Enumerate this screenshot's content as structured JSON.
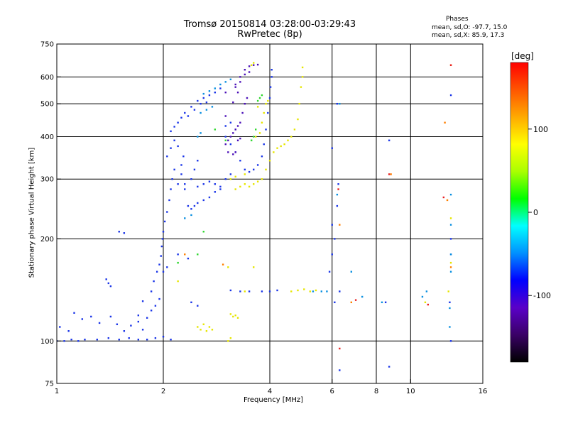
{
  "chart_data": {
    "type": "scatter",
    "title": "Tromsø 20150814 03:28:00-03:29:43",
    "subtitle": "RwPretec (8p)",
    "xlabel": "Frequency [MHz]",
    "ylabel": "Stationary phase Virtual Height [km]",
    "x_scale": "log",
    "y_scale": "log",
    "xlim": [
      1,
      16
    ],
    "ylim": [
      75,
      750
    ],
    "x_ticks": [
      1,
      2,
      4,
      6,
      8,
      10,
      16
    ],
    "x_tick_labels": [
      "1",
      "2",
      "4",
      "6",
      "8",
      "10",
      "16"
    ],
    "y_ticks": [
      75,
      100,
      200,
      300,
      400,
      500,
      600,
      750
    ],
    "y_tick_labels": [
      "75",
      "100",
      "200",
      "300",
      "400",
      "500",
      "600",
      "750"
    ],
    "x_gridlines": [
      2,
      4,
      6,
      8,
      10
    ],
    "y_gridlines": [
      100,
      200,
      300,
      400,
      500,
      600
    ],
    "grid": true,
    "phase_info": {
      "heading": "Phases",
      "o_mode": "mean, sd,O: -97.7, 15.0",
      "x_mode": "mean, sd,X: 85.9, 17.3"
    },
    "colorbar": {
      "label": "[deg]",
      "range": [
        -180,
        180
      ],
      "ticks": [
        100,
        0,
        -100
      ],
      "tick_labels": [
        "100",
        "0",
        "-100"
      ],
      "colors": [
        "#000000",
        "#3a0066",
        "#5a00c8",
        "#0000ff",
        "#0090ff",
        "#00ffff",
        "#00ff00",
        "#aaff00",
        "#ffff00",
        "#ffaa00",
        "#ff5500",
        "#ff0000"
      ]
    },
    "series": [
      {
        "color": "#1a35e8",
        "points": [
          [
            1.0,
            100
          ],
          [
            1.05,
            100
          ],
          [
            1.1,
            101
          ],
          [
            1.15,
            100
          ],
          [
            1.2,
            101
          ],
          [
            1.3,
            101
          ],
          [
            1.4,
            102
          ],
          [
            1.5,
            101
          ],
          [
            1.6,
            102
          ],
          [
            1.7,
            101
          ],
          [
            1.8,
            101
          ],
          [
            1.9,
            102
          ],
          [
            2.0,
            103
          ],
          [
            2.1,
            101
          ],
          [
            1.02,
            110
          ],
          [
            1.08,
            107
          ],
          [
            1.12,
            121
          ],
          [
            1.18,
            116
          ],
          [
            1.25,
            118
          ],
          [
            1.32,
            113
          ],
          [
            1.42,
            118
          ],
          [
            1.48,
            112
          ],
          [
            1.55,
            107
          ],
          [
            1.62,
            111
          ],
          [
            1.7,
            114
          ],
          [
            1.75,
            108
          ],
          [
            1.8,
            117
          ],
          [
            1.85,
            123
          ],
          [
            1.9,
            127
          ],
          [
            1.95,
            133
          ],
          [
            1.7,
            119
          ],
          [
            1.75,
            131
          ],
          [
            1.85,
            140
          ],
          [
            1.88,
            150
          ],
          [
            1.92,
            160
          ],
          [
            1.95,
            168
          ],
          [
            1.97,
            178
          ],
          [
            1.98,
            190
          ],
          [
            1.99,
            200
          ],
          [
            2.0,
            210
          ],
          [
            2.02,
            225
          ],
          [
            2.05,
            240
          ],
          [
            2.08,
            260
          ],
          [
            2.1,
            280
          ],
          [
            2.12,
            300
          ],
          [
            2.15,
            320
          ],
          [
            2.05,
            350
          ],
          [
            2.1,
            370
          ],
          [
            2.15,
            390
          ],
          [
            2.2,
            375
          ],
          [
            2.25,
            310
          ],
          [
            2.3,
            280
          ],
          [
            2.2,
            290
          ],
          [
            2.25,
            330
          ],
          [
            2.28,
            350
          ],
          [
            2.3,
            290
          ],
          [
            2.35,
            250
          ],
          [
            2.4,
            245
          ],
          [
            2.45,
            250
          ],
          [
            2.5,
            255
          ],
          [
            2.6,
            260
          ],
          [
            2.7,
            265
          ],
          [
            2.8,
            275
          ],
          [
            2.9,
            285
          ],
          [
            3.0,
            300
          ],
          [
            3.1,
            310
          ],
          [
            2.5,
            285
          ],
          [
            2.6,
            290
          ],
          [
            2.7,
            295
          ],
          [
            2.8,
            290
          ],
          [
            2.9,
            280
          ],
          [
            2.4,
            300
          ],
          [
            2.45,
            320
          ],
          [
            2.5,
            340
          ],
          [
            1.4,
            148
          ],
          [
            1.42,
            145
          ],
          [
            1.38,
            152
          ],
          [
            1.5,
            210
          ],
          [
            1.55,
            208
          ],
          [
            2.3,
            470
          ],
          [
            2.4,
            490
          ],
          [
            2.5,
            510
          ],
          [
            2.6,
            520
          ],
          [
            2.7,
            530
          ],
          [
            2.8,
            540
          ],
          [
            2.9,
            555
          ],
          [
            2.35,
            460
          ],
          [
            2.45,
            480
          ],
          [
            2.55,
            500
          ],
          [
            2.65,
            505
          ],
          [
            2.2,
            440
          ],
          [
            2.25,
            455
          ],
          [
            2.1,
            415
          ],
          [
            2.15,
            428
          ],
          [
            3.0,
            430
          ],
          [
            3.1,
            440
          ],
          [
            3.2,
            420
          ],
          [
            3.0,
            400
          ],
          [
            3.1,
            380
          ],
          [
            3.2,
            360
          ],
          [
            3.3,
            340
          ],
          [
            3.4,
            320
          ],
          [
            3.5,
            315
          ],
          [
            3.6,
            320
          ],
          [
            3.7,
            330
          ],
          [
            3.8,
            350
          ],
          [
            3.85,
            380
          ],
          [
            3.9,
            420
          ],
          [
            3.95,
            470
          ],
          [
            4.0,
            520
          ],
          [
            4.02,
            560
          ],
          [
            4.05,
            600
          ],
          [
            4.05,
            630
          ],
          [
            3.5,
            140
          ],
          [
            3.8,
            140
          ],
          [
            4.0,
            140
          ],
          [
            4.2,
            141
          ],
          [
            3.3,
            140
          ],
          [
            3.1,
            141
          ],
          [
            2.4,
            130
          ],
          [
            2.5,
            127
          ],
          [
            2.0,
            160
          ],
          [
            2.05,
            165
          ],
          [
            2.2,
            180
          ],
          [
            2.35,
            175
          ],
          [
            6.3,
            82
          ],
          [
            6.25,
            290
          ],
          [
            6.3,
            140
          ],
          [
            6.1,
            130
          ],
          [
            6.2,
            250
          ],
          [
            6.1,
            200
          ],
          [
            6.0,
            220
          ],
          [
            6.0,
            180
          ],
          [
            5.9,
            160
          ],
          [
            6.0,
            370
          ],
          [
            6.2,
            500
          ],
          [
            8.5,
            130
          ],
          [
            8.7,
            390
          ],
          [
            8.7,
            84
          ],
          [
            13.0,
            530
          ],
          [
            13.0,
            100
          ],
          [
            12.9,
            130
          ],
          [
            13.0,
            180
          ],
          [
            13.0,
            200
          ]
        ]
      },
      {
        "color": "#0a90e0",
        "points": [
          [
            2.3,
            230
          ],
          [
            2.4,
            235
          ],
          [
            2.5,
            400
          ],
          [
            2.55,
            410
          ],
          [
            2.6,
            535
          ],
          [
            2.7,
            545
          ],
          [
            2.8,
            555
          ],
          [
            2.9,
            570
          ],
          [
            3.0,
            580
          ],
          [
            3.1,
            590
          ],
          [
            2.55,
            470
          ],
          [
            2.65,
            480
          ],
          [
            2.75,
            490
          ],
          [
            5.3,
            140
          ],
          [
            5.6,
            140
          ],
          [
            5.8,
            140
          ],
          [
            6.3,
            500
          ],
          [
            7.3,
            135
          ],
          [
            8.3,
            130
          ],
          [
            10.8,
            135
          ],
          [
            11.1,
            140
          ],
          [
            13.0,
            270
          ],
          [
            13.0,
            220
          ],
          [
            13.0,
            180
          ],
          [
            13.0,
            160
          ],
          [
            12.9,
            125
          ],
          [
            12.9,
            110
          ],
          [
            6.8,
            160
          ],
          [
            6.2,
            270
          ]
        ]
      },
      {
        "color": "#4b10b8",
        "points": [
          [
            3.0,
            380
          ],
          [
            3.05,
            390
          ],
          [
            3.1,
            400
          ],
          [
            3.15,
            410
          ],
          [
            3.2,
            420
          ],
          [
            3.25,
            430
          ],
          [
            3.3,
            440
          ],
          [
            3.35,
            470
          ],
          [
            3.4,
            500
          ],
          [
            3.45,
            520
          ],
          [
            3.25,
            390
          ],
          [
            3.3,
            395
          ],
          [
            3.2,
            360
          ],
          [
            3.15,
            355
          ],
          [
            3.05,
            360
          ],
          [
            3.0,
            460
          ],
          [
            3.2,
            570
          ],
          [
            3.3,
            600
          ],
          [
            3.4,
            630
          ],
          [
            3.5,
            645
          ],
          [
            3.6,
            650
          ],
          [
            3.7,
            652
          ],
          [
            3.3,
            580
          ],
          [
            3.2,
            560
          ],
          [
            3.4,
            610
          ],
          [
            3.5,
            620
          ],
          [
            3.15,
            505
          ],
          [
            3.25,
            540
          ],
          [
            3.0,
            540
          ]
        ]
      },
      {
        "color": "#e6e600",
        "points": [
          [
            3.2,
            280
          ],
          [
            3.3,
            285
          ],
          [
            3.4,
            290
          ],
          [
            3.5,
            285
          ],
          [
            3.6,
            290
          ],
          [
            3.7,
            295
          ],
          [
            3.8,
            300
          ],
          [
            3.9,
            320
          ],
          [
            4.0,
            340
          ],
          [
            4.1,
            360
          ],
          [
            4.2,
            370
          ],
          [
            4.3,
            375
          ],
          [
            4.4,
            380
          ],
          [
            4.5,
            390
          ],
          [
            4.6,
            400
          ],
          [
            4.7,
            420
          ],
          [
            4.8,
            450
          ],
          [
            4.85,
            500
          ],
          [
            4.9,
            560
          ],
          [
            4.95,
            600
          ],
          [
            4.95,
            640
          ],
          [
            3.1,
            300
          ],
          [
            3.2,
            305
          ],
          [
            3.4,
            310
          ],
          [
            2.5,
            110
          ],
          [
            2.55,
            108
          ],
          [
            2.6,
            112
          ],
          [
            2.65,
            107
          ],
          [
            2.7,
            110
          ],
          [
            2.75,
            108
          ],
          [
            3.1,
            120
          ],
          [
            3.15,
            118
          ],
          [
            3.2,
            119
          ],
          [
            3.25,
            117
          ],
          [
            3.1,
            102
          ],
          [
            3.05,
            100
          ],
          [
            4.6,
            140
          ],
          [
            4.8,
            141
          ],
          [
            5.0,
            142
          ],
          [
            5.2,
            140
          ],
          [
            5.4,
            141
          ],
          [
            3.8,
            440
          ],
          [
            3.85,
            470
          ],
          [
            3.9,
            500
          ],
          [
            3.95,
            510
          ],
          [
            3.7,
            490
          ],
          [
            3.65,
            400
          ],
          [
            3.75,
            410
          ],
          [
            3.55,
            650
          ],
          [
            3.6,
            660
          ],
          [
            13.0,
            230
          ],
          [
            13.0,
            170
          ],
          [
            12.8,
            140
          ],
          [
            11.0,
            130
          ],
          [
            3.4,
            140
          ],
          [
            3.6,
            165
          ],
          [
            3.05,
            165
          ],
          [
            2.2,
            150
          ]
        ]
      },
      {
        "color": "#30d830",
        "points": [
          [
            3.6,
            400
          ],
          [
            3.65,
            420
          ],
          [
            3.55,
            390
          ],
          [
            3.7,
            510
          ],
          [
            3.75,
            520
          ],
          [
            3.8,
            530
          ],
          [
            2.5,
            180
          ],
          [
            2.6,
            210
          ],
          [
            3.0,
            390
          ],
          [
            2.8,
            420
          ],
          [
            2.2,
            170
          ]
        ]
      },
      {
        "color": "#ff7f00",
        "points": [
          [
            13.0,
            650
          ],
          [
            12.5,
            440
          ],
          [
            12.7,
            260
          ],
          [
            13.0,
            165
          ],
          [
            2.3,
            180
          ],
          [
            6.3,
            220
          ],
          [
            6.8,
            130
          ],
          [
            8.8,
            310
          ],
          [
            2.95,
            168
          ]
        ]
      },
      {
        "color": "#e82020",
        "points": [
          [
            6.25,
            280
          ],
          [
            6.3,
            95
          ],
          [
            7.0,
            132
          ],
          [
            11.2,
            128
          ],
          [
            12.4,
            265
          ],
          [
            8.7,
            310
          ],
          [
            13.0,
            650
          ]
        ]
      }
    ]
  }
}
